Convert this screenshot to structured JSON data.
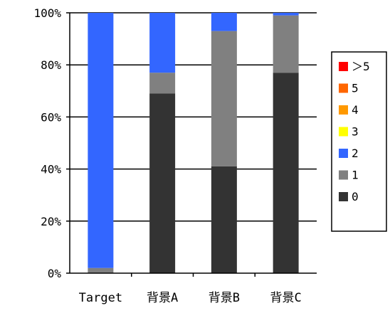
{
  "chart_data": {
    "type": "bar",
    "stacked": true,
    "percent": true,
    "categories": [
      "Target",
      "背景A",
      "背景B",
      "背景C"
    ],
    "ylim": [
      0,
      100
    ],
    "yticks": [
      "0%",
      "20%",
      "40%",
      "60%",
      "80%",
      "100%"
    ],
    "grid": true,
    "legend_position": "right",
    "series": [
      {
        "name": "0",
        "color": "#333333",
        "values": [
          0,
          69,
          41,
          77
        ]
      },
      {
        "name": "1",
        "color": "#808080",
        "values": [
          2,
          8,
          52,
          22
        ]
      },
      {
        "name": "2",
        "color": "#3366FF",
        "values": [
          98,
          23,
          7,
          1
        ]
      },
      {
        "name": "3",
        "color": "#FFFF00",
        "values": [
          0,
          0,
          0,
          0
        ]
      },
      {
        "name": "4",
        "color": "#FF9900",
        "values": [
          0,
          0,
          0,
          0
        ]
      },
      {
        "name": "5",
        "color": "#FF6600",
        "values": [
          0,
          0,
          0,
          0
        ]
      },
      {
        "name": "＞5",
        "color": "#FF0000",
        "values": [
          0,
          0,
          0,
          0
        ]
      }
    ],
    "legend_order": [
      "＞5",
      "5",
      "4",
      "3",
      "2",
      "1",
      "0"
    ]
  }
}
